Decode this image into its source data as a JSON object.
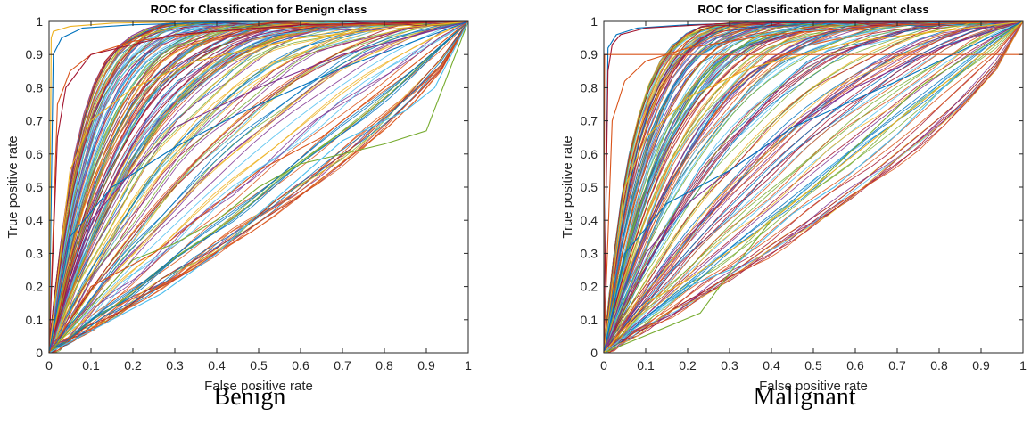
{
  "captions": [
    "Benign",
    "Malignant"
  ],
  "chart_data": [
    {
      "type": "line",
      "title": "ROC for Classification for Benign class",
      "xlabel": "False positive rate",
      "ylabel": "True positive rate",
      "xlim": [
        0,
        1
      ],
      "ylim": [
        0,
        1
      ],
      "xticks": [
        "0",
        "0.1",
        "0.2",
        "0.3",
        "0.4",
        "0.5",
        "0.6",
        "0.7",
        "0.8",
        "0.9",
        "1"
      ],
      "yticks": [
        "0",
        "0.1",
        "0.2",
        "0.3",
        "0.4",
        "0.5",
        "0.6",
        "0.7",
        "0.8",
        "0.9",
        "1"
      ],
      "grid": false,
      "legend": "none",
      "series_colors": [
        "#0072bd",
        "#d95319",
        "#edb120",
        "#7e2f8e",
        "#77ac30",
        "#4dbeee",
        "#a2142f"
      ],
      "series": [
        {
          "x": [
            0,
            0.01,
            0.03,
            0.08,
            0.2,
            0.5,
            1
          ],
          "y": [
            0,
            0.9,
            0.95,
            0.98,
            0.99,
            1,
            1
          ]
        },
        {
          "x": [
            0,
            0.02,
            0.05,
            0.1,
            0.2,
            0.4,
            0.7,
            1
          ],
          "y": [
            0,
            0.75,
            0.85,
            0.9,
            0.94,
            0.97,
            0.99,
            1
          ]
        },
        {
          "x": [
            0,
            0.05,
            0.1,
            0.2,
            0.35,
            0.6,
            1
          ],
          "y": [
            0,
            0.55,
            0.7,
            0.8,
            0.88,
            0.95,
            1
          ]
        },
        {
          "x": [
            0,
            0.1,
            0.2,
            0.3,
            0.5,
            0.7,
            1
          ],
          "y": [
            0,
            0.4,
            0.55,
            0.68,
            0.8,
            0.9,
            1
          ]
        },
        {
          "x": [
            0,
            0.2,
            0.3,
            0.4,
            0.5,
            0.6,
            0.8,
            0.9,
            1
          ],
          "y": [
            0,
            0.28,
            0.33,
            0.4,
            0.5,
            0.57,
            0.63,
            0.67,
            1
          ]
        },
        {
          "x": [
            0,
            0.27,
            0.4,
            0.5,
            0.6,
            0.7,
            0.85,
            0.92,
            1
          ],
          "y": [
            0,
            0.18,
            0.3,
            0.42,
            0.53,
            0.64,
            0.73,
            0.8,
            1
          ]
        },
        {
          "x": [
            0,
            0.02,
            0.04,
            0.1,
            0.3,
            0.6,
            1
          ],
          "y": [
            0,
            0.65,
            0.8,
            0.9,
            0.96,
            0.99,
            1
          ]
        },
        {
          "x": [
            0,
            0.05,
            0.15,
            0.3,
            0.45,
            0.7,
            1
          ],
          "y": [
            0,
            0.35,
            0.5,
            0.62,
            0.72,
            0.86,
            1
          ]
        },
        {
          "x": [
            0,
            0.1,
            0.25,
            0.35,
            0.5,
            0.65,
            0.8,
            1
          ],
          "y": [
            0,
            0.2,
            0.3,
            0.4,
            0.55,
            0.65,
            0.8,
            1
          ]
        },
        {
          "x": [
            0,
            0.005,
            0.01,
            0.05,
            0.15,
            0.4,
            1
          ],
          "y": [
            0,
            0.95,
            0.97,
            0.985,
            0.995,
            1,
            1
          ]
        }
      ]
    },
    {
      "type": "line",
      "title": "ROC for Classification for Malignant class",
      "xlabel": "False positive rate",
      "ylabel": "True positive rate",
      "xlim": [
        0,
        1
      ],
      "ylim": [
        0,
        1
      ],
      "xticks": [
        "0",
        "0.1",
        "0.2",
        "0.3",
        "0.4",
        "0.5",
        "0.6",
        "0.7",
        "0.8",
        "0.9",
        "1"
      ],
      "yticks": [
        "0",
        "0.1",
        "0.2",
        "0.3",
        "0.4",
        "0.5",
        "0.6",
        "0.7",
        "0.8",
        "0.9",
        "1"
      ],
      "grid": false,
      "legend": "none",
      "series_colors": [
        "#0072bd",
        "#d95319",
        "#edb120",
        "#7e2f8e",
        "#77ac30",
        "#4dbeee",
        "#a2142f"
      ],
      "series": [
        {
          "x": [
            0,
            0.01,
            0.03,
            0.08,
            0.2,
            0.5,
            1
          ],
          "y": [
            0,
            0.92,
            0.96,
            0.98,
            0.99,
            1,
            1
          ]
        },
        {
          "x": [
            0,
            0.02,
            0.05,
            0.1,
            0.2,
            0.4,
            0.7,
            1
          ],
          "y": [
            0,
            0.7,
            0.82,
            0.88,
            0.92,
            0.96,
            0.99,
            1
          ]
        },
        {
          "x": [
            0,
            0.05,
            0.1,
            0.2,
            0.35,
            0.6,
            1
          ],
          "y": [
            0,
            0.5,
            0.65,
            0.77,
            0.86,
            0.94,
            1
          ]
        },
        {
          "x": [
            0,
            0.1,
            0.2,
            0.3,
            0.45,
            0.6,
            0.8,
            1
          ],
          "y": [
            0,
            0.3,
            0.45,
            0.55,
            0.68,
            0.8,
            0.92,
            1
          ]
        },
        {
          "x": [
            0,
            0.23,
            0.3,
            0.4,
            0.5,
            0.6,
            0.75,
            1
          ],
          "y": [
            0,
            0.12,
            0.24,
            0.4,
            0.5,
            0.62,
            0.8,
            1
          ]
        },
        {
          "x": [
            0,
            0.2,
            0.3,
            0.45,
            0.55,
            0.7,
            0.85,
            1
          ],
          "y": [
            0,
            0.2,
            0.25,
            0.42,
            0.5,
            0.66,
            0.85,
            1
          ]
        },
        {
          "x": [
            0,
            0.01,
            0.02,
            0.04,
            0.1,
            0.3,
            1
          ],
          "y": [
            0,
            0.85,
            0.93,
            0.96,
            0.98,
            0.995,
            1
          ]
        },
        {
          "x": [
            0,
            0.05,
            0.15,
            0.3,
            0.45,
            0.7,
            1
          ],
          "y": [
            0,
            0.3,
            0.45,
            0.55,
            0.68,
            0.82,
            1
          ]
        },
        {
          "x": [
            0,
            0.002,
            0.002,
            1,
            1,
            1
          ],
          "y": [
            0,
            0.9,
            0.9,
            0.9,
            0.9,
            1
          ]
        },
        {
          "x": [
            0,
            0.1,
            0.2,
            0.35,
            0.5,
            0.7,
            0.85,
            1
          ],
          "y": [
            0,
            0.15,
            0.22,
            0.35,
            0.5,
            0.7,
            0.85,
            1
          ]
        }
      ]
    }
  ]
}
